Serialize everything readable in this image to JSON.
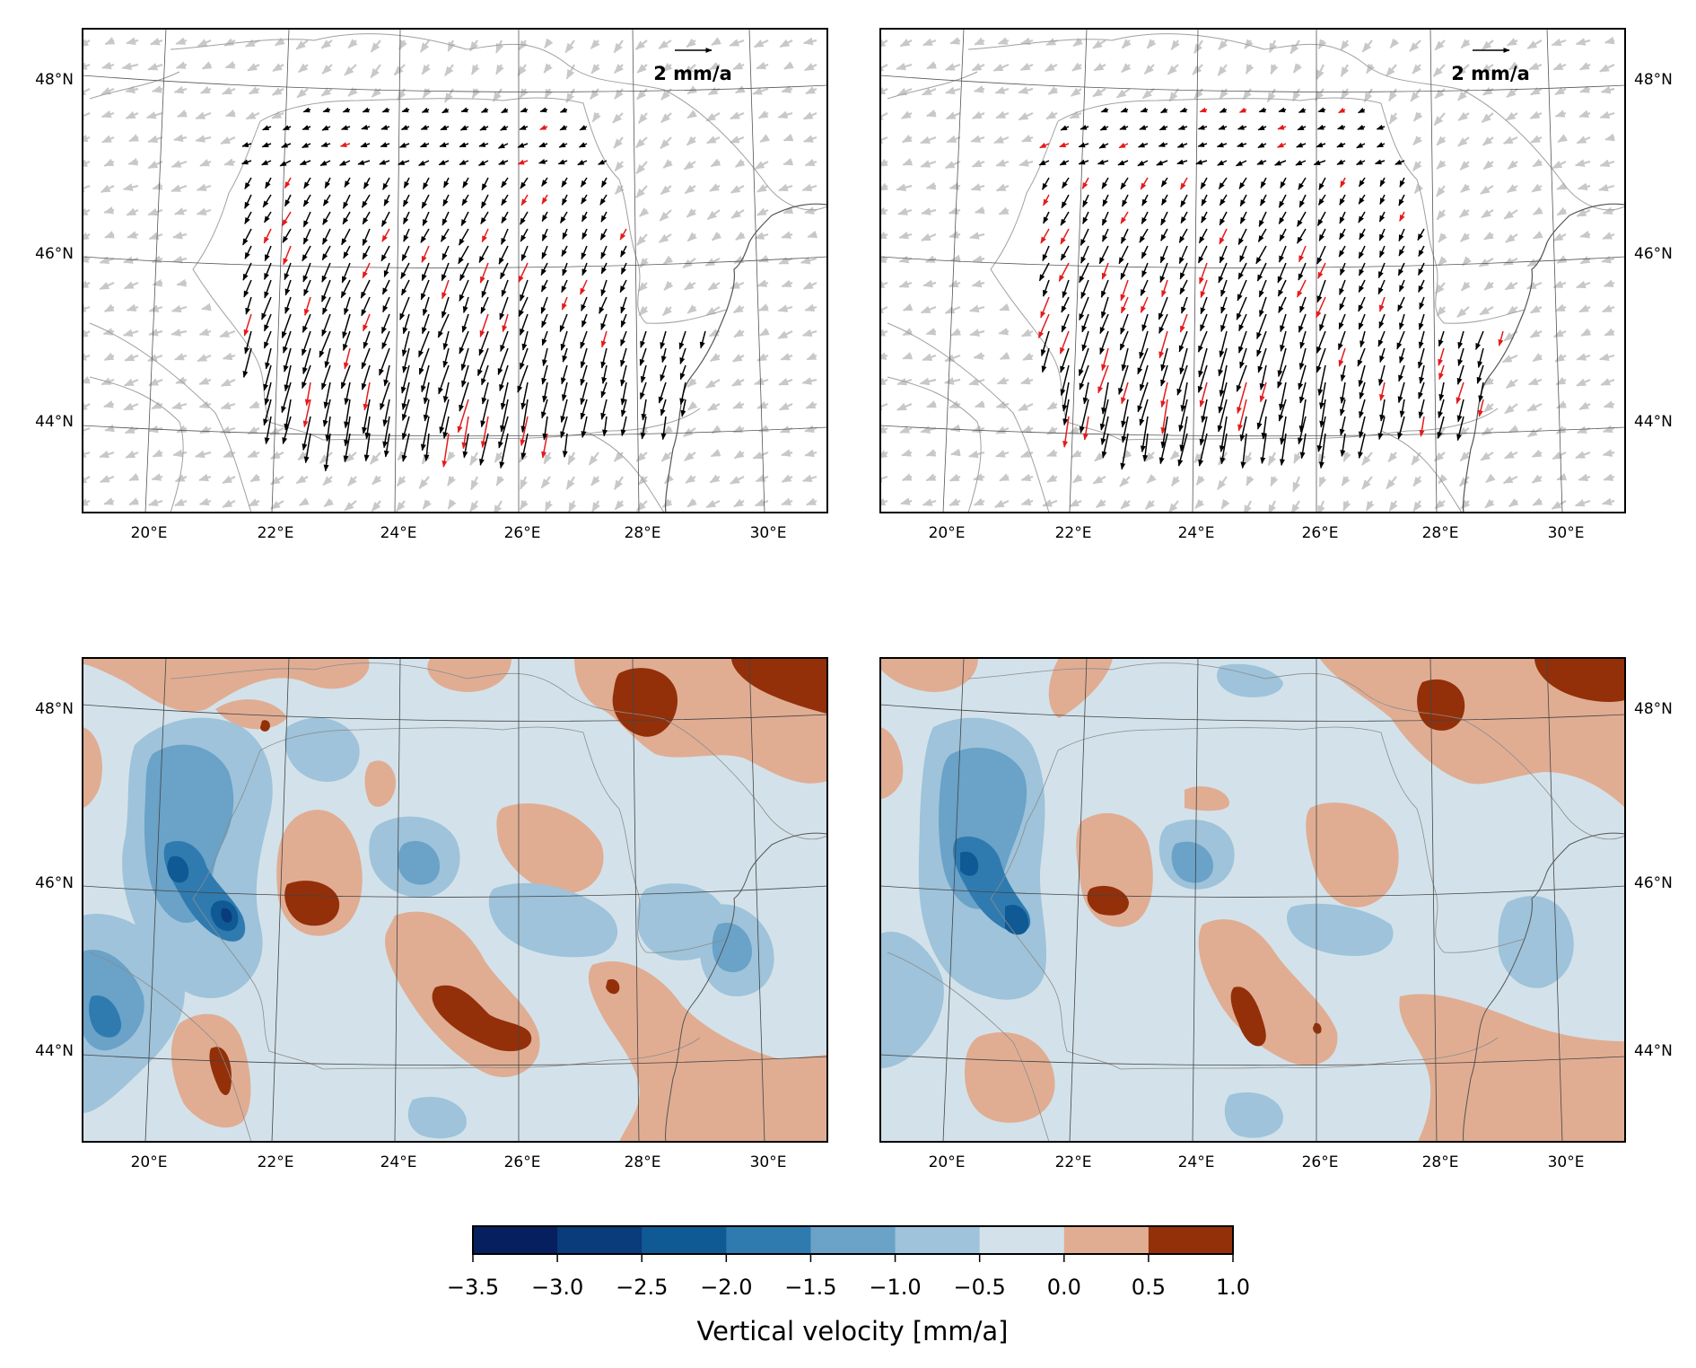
{
  "panels": [
    {
      "id": "hv-left",
      "kind": "vectors",
      "scale_label": "2 mm/a"
    },
    {
      "id": "hv-right",
      "kind": "vectors",
      "scale_label": "2 mm/a"
    },
    {
      "id": "vv-left",
      "kind": "contours"
    },
    {
      "id": "vv-right",
      "kind": "contours"
    }
  ],
  "lon_ticks": [
    "20°E",
    "22°E",
    "24°E",
    "26°E",
    "28°E",
    "30°E"
  ],
  "lat_ticks": [
    "48°N",
    "46°N",
    "44°N"
  ],
  "colorbar": {
    "label": "Vertical velocity [mm/a]",
    "tick_labels": [
      "−3.5",
      "−3.0",
      "−2.5",
      "−2.0",
      "−1.5",
      "−1.0",
      "−0.5",
      "0.0",
      "0.5",
      "1.0"
    ],
    "colors": [
      "#061f5e",
      "#0a3b7a",
      "#0f5a94",
      "#2f7bb0",
      "#6aa2c8",
      "#9ec3da",
      "#d3e2ea",
      "#e0ad93",
      "#933009"
    ]
  },
  "colors": {
    "vector_main": "#000000",
    "vector_highlight": "#e41a1c",
    "vector_background": "#c8c8c8",
    "border": "#a0a0a0",
    "coast": "#555555",
    "graticule": "#555555"
  }
}
